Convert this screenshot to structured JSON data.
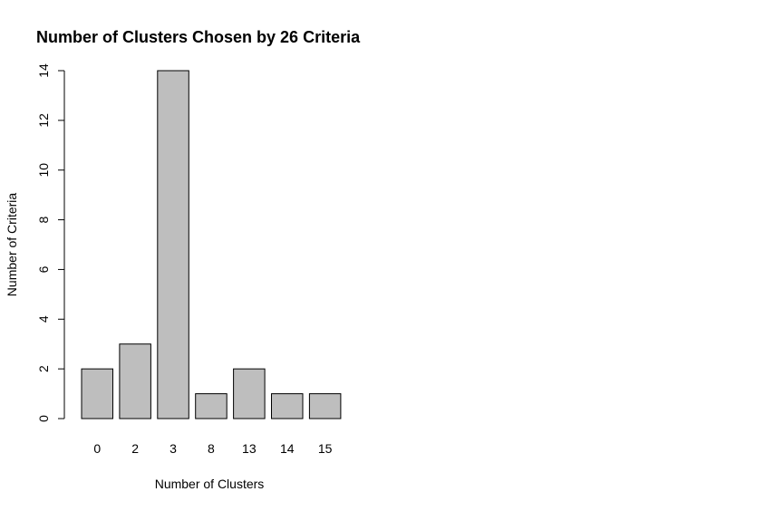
{
  "chart_data": {
    "type": "bar",
    "title": "Number of Clusters Chosen by 26 Criteria",
    "xlabel": "Number of Clusters",
    "ylabel": "Number of Criteria",
    "categories": [
      "0",
      "2",
      "3",
      "8",
      "13",
      "14",
      "15"
    ],
    "values": [
      2,
      3,
      14,
      1,
      2,
      1,
      1
    ],
    "ylim": [
      0,
      14
    ],
    "yticks": [
      "0",
      "2",
      "4",
      "6",
      "8",
      "10",
      "12",
      "14"
    ],
    "grid": false,
    "legend": "none",
    "bar_fill": "#bebebe",
    "bar_stroke": "#000000"
  }
}
